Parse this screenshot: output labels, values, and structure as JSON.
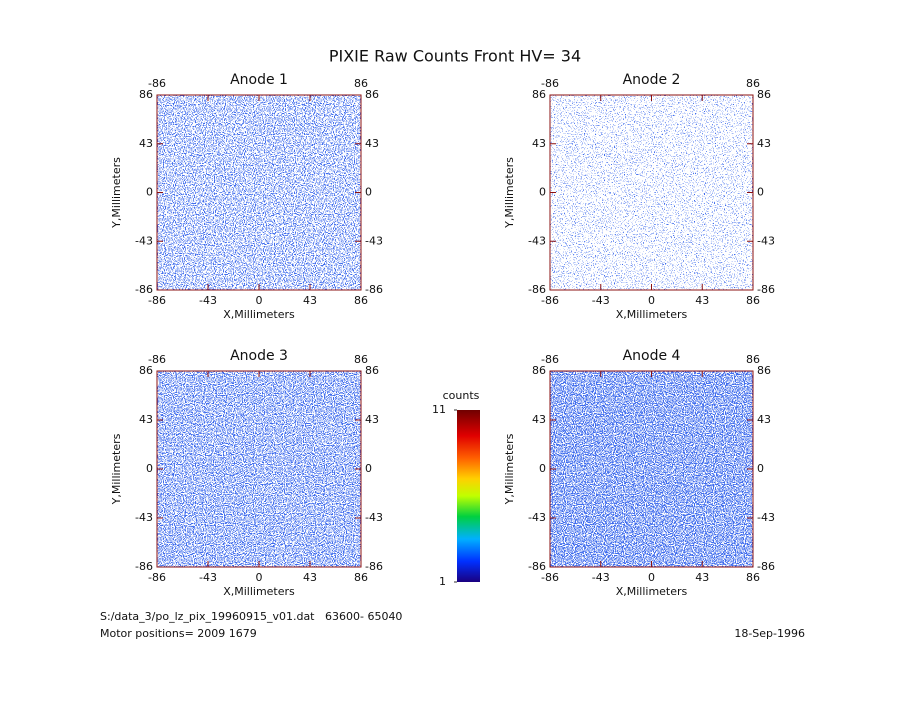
{
  "title": "PIXIE Raw Counts Front HV= 34",
  "chart_data": [
    {
      "type": "image",
      "title": "Anode 1",
      "xlabel": "X,Millimeters",
      "ylabel": "Y,Millimeters",
      "xlim": [
        -86,
        86
      ],
      "ylim": [
        -86,
        86
      ],
      "xticks": [
        -86,
        -43,
        0,
        43,
        86
      ],
      "yticks": [
        -86,
        -43,
        0,
        43,
        86
      ]
    },
    {
      "type": "image",
      "title": "Anode 2",
      "xlabel": "X,Millimeters",
      "ylabel": "Y,Millimeters",
      "xlim": [
        -86,
        86
      ],
      "ylim": [
        -86,
        86
      ],
      "xticks": [
        -86,
        -43,
        0,
        43,
        86
      ],
      "yticks": [
        -86,
        -43,
        0,
        43,
        86
      ]
    },
    {
      "type": "image",
      "title": "Anode 3",
      "xlabel": "X,Millimeters",
      "ylabel": "Y,Millimeters",
      "xlim": [
        -86,
        86
      ],
      "ylim": [
        -86,
        86
      ],
      "xticks": [
        -86,
        -43,
        0,
        43,
        86
      ],
      "yticks": [
        -86,
        -43,
        0,
        43,
        86
      ]
    },
    {
      "type": "image",
      "title": "Anode 4",
      "xlabel": "X,Millimeters",
      "ylabel": "Y,Millimeters",
      "xlim": [
        -86,
        86
      ],
      "ylim": [
        -86,
        86
      ],
      "xticks": [
        -86,
        -43,
        0,
        43,
        86
      ],
      "yticks": [
        -86,
        -43,
        0,
        43,
        86
      ]
    }
  ],
  "colorbar": {
    "label": "counts",
    "lim": [
      1,
      11
    ],
    "ticks": [
      1,
      11
    ]
  },
  "footer": {
    "file": "S:/data_3/po_lz_pix_19960915_v01.dat   63600- 65040",
    "motor": "Motor positions= 2009 1679",
    "date": "18-Sep-1996"
  }
}
